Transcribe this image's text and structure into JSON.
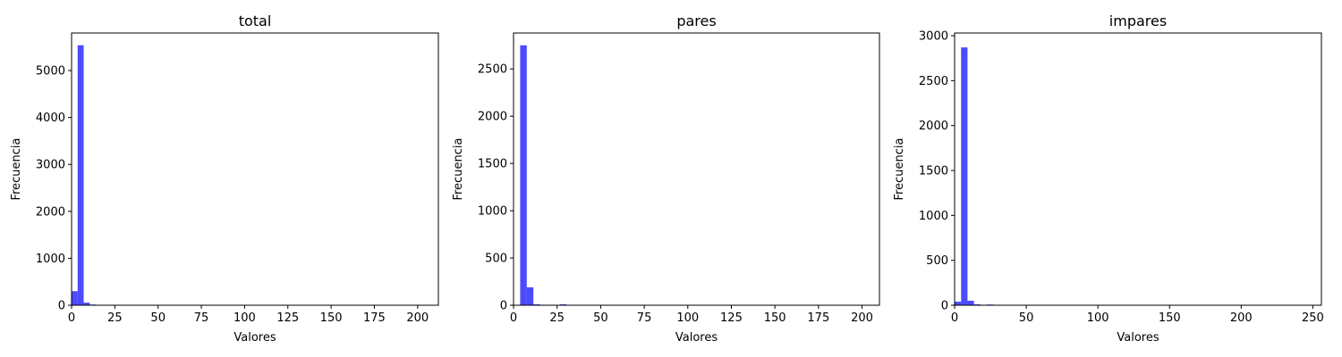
{
  "chart_data": [
    {
      "type": "bar",
      "title": "total",
      "xlabel": "Valores",
      "ylabel": "Frecuencia",
      "xlim": [
        0,
        212
      ],
      "ylim": [
        0,
        5800
      ],
      "xticks": [
        0,
        25,
        50,
        75,
        100,
        125,
        150,
        175,
        200
      ],
      "yticks": [
        0,
        1000,
        2000,
        3000,
        4000,
        5000
      ],
      "bar_color": "#0000ff",
      "bins": [
        {
          "x0": 0,
          "x1": 3.5,
          "count": 300
        },
        {
          "x0": 3.5,
          "x1": 7,
          "count": 5540
        },
        {
          "x0": 7,
          "x1": 10.5,
          "count": 55
        },
        {
          "x0": 10.5,
          "x1": 14,
          "count": 15
        },
        {
          "x0": 17.5,
          "x1": 21,
          "count": 8
        },
        {
          "x0": 21,
          "x1": 24.5,
          "count": 3
        }
      ]
    },
    {
      "type": "bar",
      "title": "pares",
      "xlabel": "Valores",
      "ylabel": "Frecuencia",
      "xlim": [
        0,
        210
      ],
      "ylim": [
        0,
        2880
      ],
      "xticks": [
        0,
        25,
        50,
        75,
        100,
        125,
        150,
        175,
        200
      ],
      "yticks": [
        0,
        500,
        1000,
        1500,
        2000,
        2500
      ],
      "bar_color": "#0000ff",
      "bins": [
        {
          "x0": 3.8,
          "x1": 7.6,
          "count": 2750
        },
        {
          "x0": 7.6,
          "x1": 11.4,
          "count": 190
        },
        {
          "x0": 11.4,
          "x1": 15.2,
          "count": 10
        },
        {
          "x0": 15.2,
          "x1": 19,
          "count": 5
        },
        {
          "x0": 26.6,
          "x1": 30.4,
          "count": 10
        }
      ]
    },
    {
      "type": "bar",
      "title": "impares",
      "xlabel": "Valores",
      "ylabel": "Frecuencia",
      "xlim": [
        0,
        256
      ],
      "ylim": [
        0,
        3030
      ],
      "xticks": [
        0,
        50,
        100,
        150,
        200,
        250
      ],
      "yticks": [
        0,
        500,
        1000,
        1500,
        2000,
        2500,
        3000
      ],
      "bar_color": "#0000ff",
      "bins": [
        {
          "x0": 0,
          "x1": 4.5,
          "count": 40
        },
        {
          "x0": 4.5,
          "x1": 9,
          "count": 2870
        },
        {
          "x0": 9,
          "x1": 13.5,
          "count": 50
        },
        {
          "x0": 13.5,
          "x1": 18,
          "count": 10
        },
        {
          "x0": 22.5,
          "x1": 27,
          "count": 8
        }
      ]
    }
  ]
}
